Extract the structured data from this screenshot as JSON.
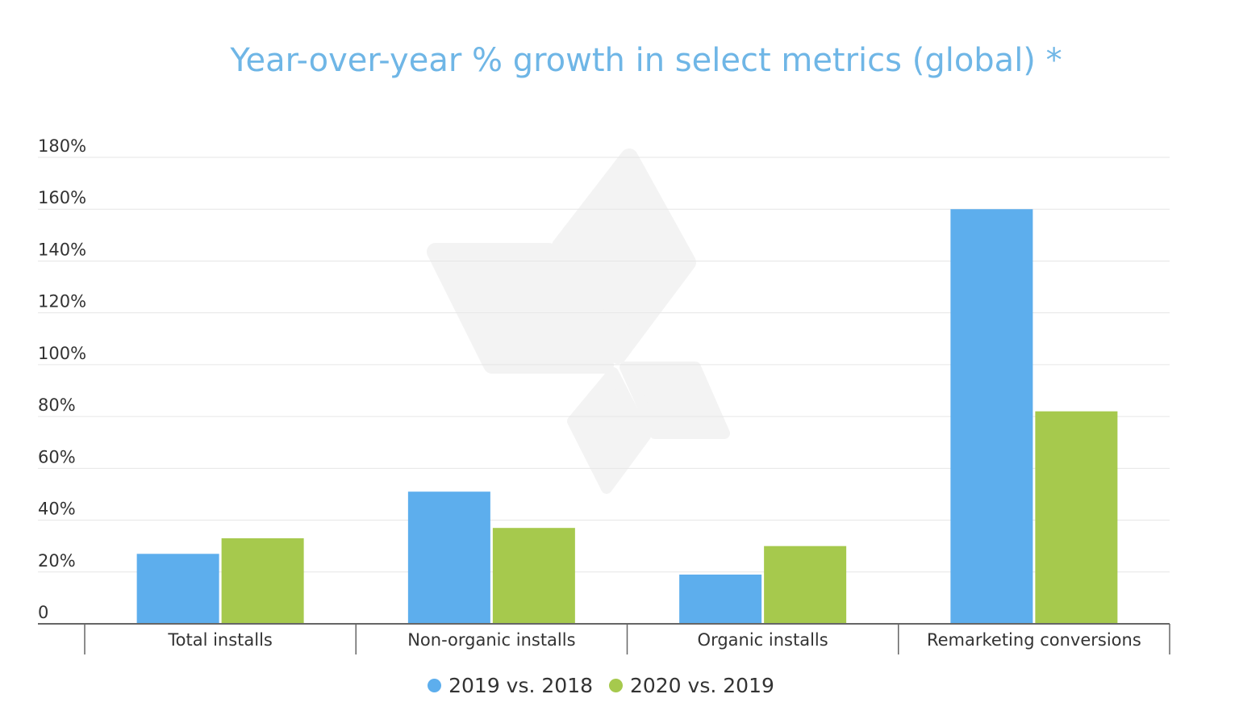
{
  "chart_data": {
    "type": "bar",
    "title": "Year-over-year % growth in select metrics (global) *",
    "categories": [
      "Total installs",
      "Non-organic installs",
      "Organic installs",
      "Remarketing conversions"
    ],
    "series": [
      {
        "name": "2019 vs. 2018",
        "color": "#5daeed",
        "values": [
          27,
          51,
          19,
          160
        ]
      },
      {
        "name": "2020 vs. 2019",
        "color": "#a6c94d",
        "values": [
          33,
          37,
          30,
          82
        ]
      }
    ],
    "y_ticks": [
      "0",
      "20%",
      "40%",
      "60%",
      "80%",
      "100%",
      "120%",
      "140%",
      "160%",
      "180%"
    ],
    "ylim": [
      0,
      180
    ],
    "grid": true,
    "legend_position": "bottom"
  }
}
